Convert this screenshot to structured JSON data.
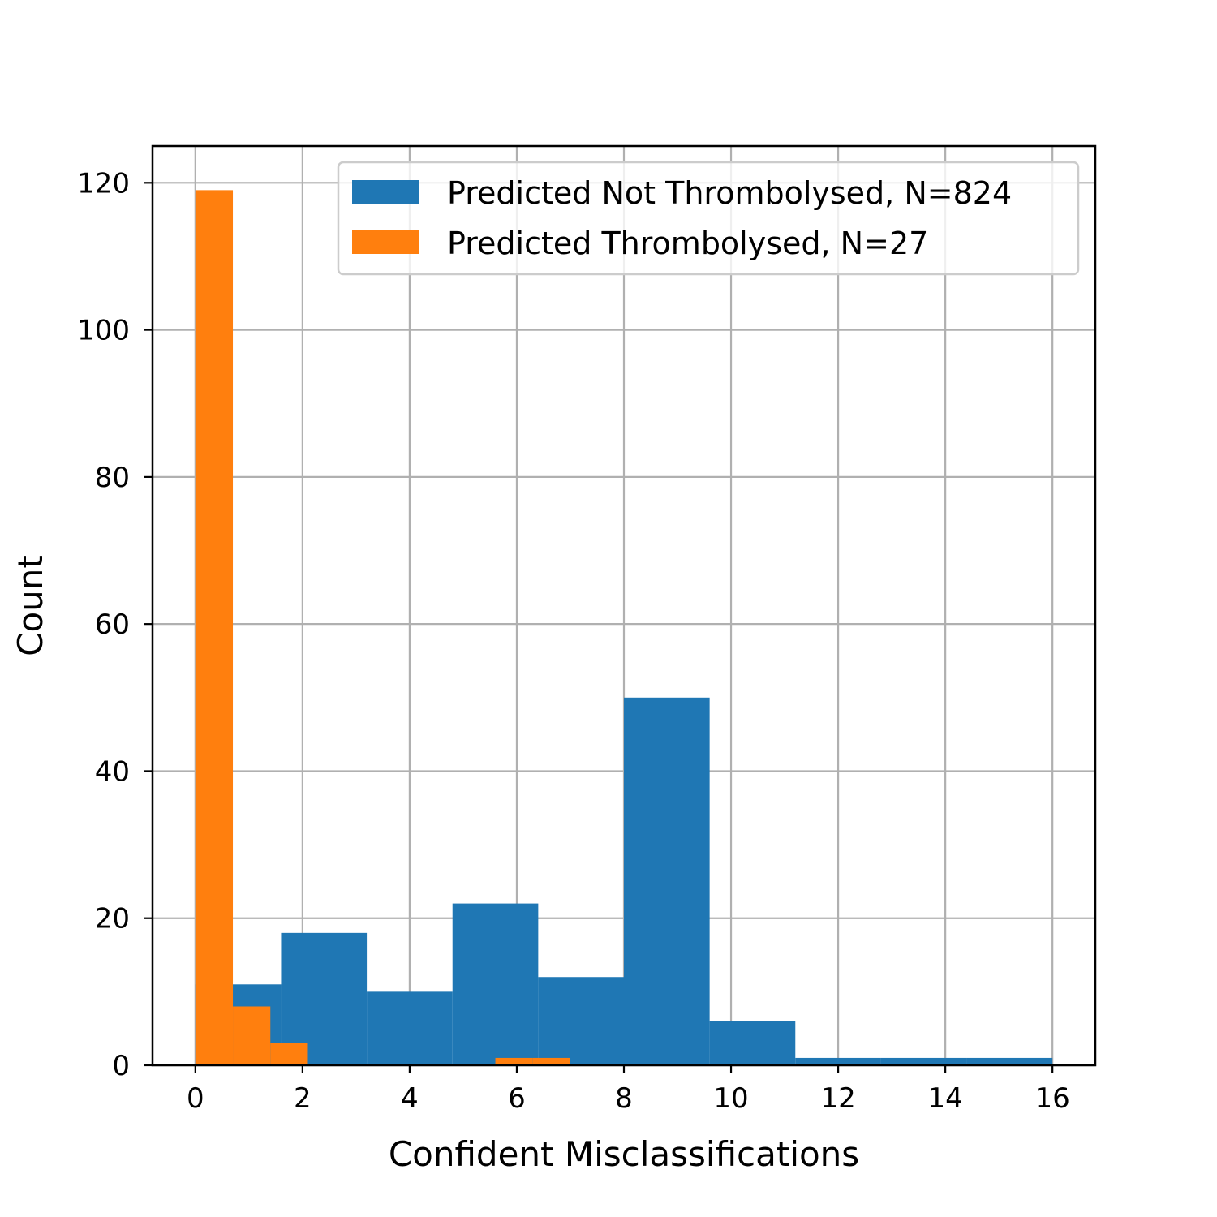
{
  "chart_data": {
    "type": "bar",
    "title": "",
    "xlabel": "Confident Misclassifications",
    "ylabel": "Count",
    "xlim": [
      -0.8,
      16.8
    ],
    "ylim": [
      0,
      125
    ],
    "xticks": [
      0,
      2,
      4,
      6,
      8,
      10,
      12,
      14,
      16
    ],
    "yticks": [
      0,
      20,
      40,
      60,
      80,
      100,
      120
    ],
    "grid": true,
    "legend_position": "upper-right",
    "series": [
      {
        "name": "Predicted Not Thrombolysed, N=824",
        "color": "#1f77b4",
        "bins": [
          {
            "x0": 0.0,
            "x1": 1.6,
            "count": 11
          },
          {
            "x0": 1.6,
            "x1": 3.2,
            "count": 18
          },
          {
            "x0": 3.2,
            "x1": 4.8,
            "count": 10
          },
          {
            "x0": 4.8,
            "x1": 6.4,
            "count": 22
          },
          {
            "x0": 6.4,
            "x1": 8.0,
            "count": 12
          },
          {
            "x0": 8.0,
            "x1": 9.6,
            "count": 50
          },
          {
            "x0": 9.6,
            "x1": 11.2,
            "count": 6
          },
          {
            "x0": 11.2,
            "x1": 12.8,
            "count": 1
          },
          {
            "x0": 12.8,
            "x1": 14.4,
            "count": 1
          },
          {
            "x0": 14.4,
            "x1": 16.0,
            "count": 1
          }
        ]
      },
      {
        "name": "Predicted Thrombolysed, N=27",
        "color": "#ff7f0e",
        "bins": [
          {
            "x0": 0.0,
            "x1": 0.7,
            "count": 119
          },
          {
            "x0": 0.7,
            "x1": 1.4,
            "count": 8
          },
          {
            "x0": 1.4,
            "x1": 2.1,
            "count": 3
          },
          {
            "x0": 2.1,
            "x1": 2.8,
            "count": 0
          },
          {
            "x0": 2.8,
            "x1": 3.5,
            "count": 0
          },
          {
            "x0": 3.5,
            "x1": 4.2,
            "count": 0
          },
          {
            "x0": 4.2,
            "x1": 4.9,
            "count": 0
          },
          {
            "x0": 4.9,
            "x1": 5.6,
            "count": 0
          },
          {
            "x0": 5.6,
            "x1": 6.3,
            "count": 1
          },
          {
            "x0": 6.3,
            "x1": 7.0,
            "count": 1
          }
        ]
      }
    ]
  }
}
